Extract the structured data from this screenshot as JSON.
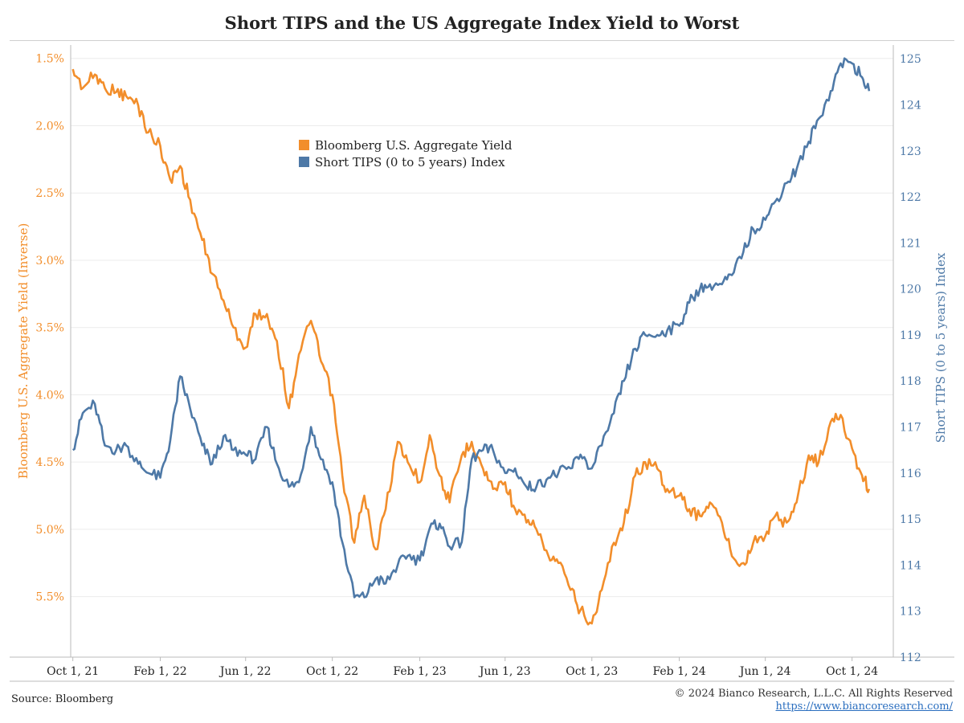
{
  "title": "Short TIPS and the US Aggregate Index Yield to Worst",
  "footer": {
    "source": "Source: Bloomberg",
    "copyright": "© 2024 Bianco Research, L.L.C. All Rights Reserved",
    "url": "https://www.biancoresearch.com/"
  },
  "colors": {
    "yield": "#f28e2b",
    "tips": "#4e79a7",
    "grid": "#ececec",
    "axis": "#bbbbbb"
  },
  "chart_data": {
    "type": "line",
    "title": "Short TIPS and the US Aggregate Index Yield to Worst",
    "x_ticks": [
      "Oct 1, 21",
      "Feb 1, 22",
      "Jun 1, 22",
      "Oct 1, 22",
      "Feb 1, 23",
      "Jun 1, 23",
      "Oct 1, 23",
      "Feb 1, 24",
      "Jun 1, 24",
      "Oct 1, 24"
    ],
    "left_axis": {
      "label": "Bloomberg U.S. Aggregate Yield (Inverse)",
      "inverted": true,
      "range": [
        1.4,
        5.95
      ],
      "ticks": [
        "1.5%",
        "2.0%",
        "2.5%",
        "3.0%",
        "3.5%",
        "4.0%",
        "4.5%",
        "5.0%",
        "5.5%"
      ]
    },
    "right_axis": {
      "label": "Short TIPS (0 to 5 years) Index",
      "range": [
        112,
        125.3
      ],
      "ticks": [
        "112",
        "113",
        "114",
        "115",
        "116",
        "117",
        "118",
        "119",
        "120",
        "121",
        "122",
        "123",
        "124",
        "125"
      ]
    },
    "legend_position": "upper-center",
    "series": [
      {
        "name": "Bloomberg U.S. Aggregate Yield",
        "axis": "left",
        "points": [
          [
            "2021-10-01",
            1.58
          ],
          [
            "2021-10-15",
            1.72
          ],
          [
            "2021-11-01",
            1.62
          ],
          [
            "2021-11-15",
            1.72
          ],
          [
            "2021-12-01",
            1.75
          ],
          [
            "2021-12-15",
            1.78
          ],
          [
            "2022-01-01",
            1.85
          ],
          [
            "2022-01-15",
            2.05
          ],
          [
            "2022-02-01",
            2.15
          ],
          [
            "2022-02-15",
            2.4
          ],
          [
            "2022-03-01",
            2.3
          ],
          [
            "2022-03-15",
            2.55
          ],
          [
            "2022-04-01",
            2.85
          ],
          [
            "2022-04-15",
            3.1
          ],
          [
            "2022-05-01",
            3.3
          ],
          [
            "2022-05-15",
            3.5
          ],
          [
            "2022-06-01",
            3.65
          ],
          [
            "2022-06-15",
            3.4
          ],
          [
            "2022-07-01",
            3.4
          ],
          [
            "2022-07-15",
            3.6
          ],
          [
            "2022-08-01",
            4.1
          ],
          [
            "2022-08-15",
            3.7
          ],
          [
            "2022-09-01",
            3.45
          ],
          [
            "2022-09-15",
            3.75
          ],
          [
            "2022-10-01",
            4.0
          ],
          [
            "2022-10-15",
            4.6
          ],
          [
            "2022-11-01",
            5.1
          ],
          [
            "2022-11-15",
            4.75
          ],
          [
            "2022-12-01",
            5.15
          ],
          [
            "2022-12-15",
            4.85
          ],
          [
            "2023-01-01",
            4.35
          ],
          [
            "2023-01-15",
            4.5
          ],
          [
            "2023-02-01",
            4.65
          ],
          [
            "2023-02-15",
            4.3
          ],
          [
            "2023-03-01",
            4.6
          ],
          [
            "2023-03-15",
            4.8
          ],
          [
            "2023-04-01",
            4.45
          ],
          [
            "2023-04-15",
            4.35
          ],
          [
            "2023-05-01",
            4.55
          ],
          [
            "2023-05-15",
            4.7
          ],
          [
            "2023-06-01",
            4.65
          ],
          [
            "2023-06-15",
            4.85
          ],
          [
            "2023-07-01",
            4.95
          ],
          [
            "2023-07-15",
            5.0
          ],
          [
            "2023-08-01",
            5.2
          ],
          [
            "2023-08-15",
            5.25
          ],
          [
            "2023-09-01",
            5.45
          ],
          [
            "2023-09-15",
            5.6
          ],
          [
            "2023-10-01",
            5.7
          ],
          [
            "2023-10-15",
            5.45
          ],
          [
            "2023-11-01",
            5.1
          ],
          [
            "2023-11-15",
            4.95
          ],
          [
            "2023-12-01",
            4.6
          ],
          [
            "2023-12-15",
            4.5
          ],
          [
            "2024-01-01",
            4.55
          ],
          [
            "2024-01-15",
            4.7
          ],
          [
            "2024-02-01",
            4.75
          ],
          [
            "2024-02-15",
            4.85
          ],
          [
            "2024-03-01",
            4.9
          ],
          [
            "2024-03-15",
            4.8
          ],
          [
            "2024-04-01",
            4.95
          ],
          [
            "2024-04-15",
            5.2
          ],
          [
            "2024-05-01",
            5.25
          ],
          [
            "2024-05-15",
            5.1
          ],
          [
            "2024-06-01",
            5.05
          ],
          [
            "2024-06-15",
            4.9
          ],
          [
            "2024-07-01",
            4.95
          ],
          [
            "2024-07-15",
            4.8
          ],
          [
            "2024-08-01",
            4.45
          ],
          [
            "2024-08-15",
            4.5
          ],
          [
            "2024-09-01",
            4.2
          ],
          [
            "2024-09-15",
            4.15
          ],
          [
            "2024-10-01",
            4.4
          ],
          [
            "2024-10-15",
            4.6
          ],
          [
            "2024-10-25",
            4.7
          ]
        ]
      },
      {
        "name": "Short TIPS (0 to 5 years) Index",
        "axis": "right",
        "points": [
          [
            "2021-10-01",
            116.5
          ],
          [
            "2021-10-15",
            117.3
          ],
          [
            "2021-11-01",
            117.5
          ],
          [
            "2021-11-15",
            116.6
          ],
          [
            "2021-12-01",
            116.5
          ],
          [
            "2021-12-15",
            116.6
          ],
          [
            "2022-01-01",
            116.2
          ],
          [
            "2022-01-15",
            116.0
          ],
          [
            "2022-02-01",
            115.9
          ],
          [
            "2022-02-15",
            116.7
          ],
          [
            "2022-03-01",
            118.1
          ],
          [
            "2022-03-15",
            117.4
          ],
          [
            "2022-04-01",
            116.6
          ],
          [
            "2022-04-15",
            116.2
          ],
          [
            "2022-05-01",
            116.8
          ],
          [
            "2022-05-15",
            116.5
          ],
          [
            "2022-06-01",
            116.4
          ],
          [
            "2022-06-15",
            116.3
          ],
          [
            "2022-07-01",
            117.0
          ],
          [
            "2022-07-15",
            116.2
          ],
          [
            "2022-08-01",
            115.7
          ],
          [
            "2022-08-15",
            115.8
          ],
          [
            "2022-09-01",
            117.0
          ],
          [
            "2022-09-15",
            116.3
          ],
          [
            "2022-10-01",
            115.8
          ],
          [
            "2022-10-15",
            114.5
          ],
          [
            "2022-11-01",
            113.3
          ],
          [
            "2022-11-15",
            113.3
          ],
          [
            "2022-12-01",
            113.7
          ],
          [
            "2022-12-15",
            113.6
          ],
          [
            "2023-01-01",
            114.0
          ],
          [
            "2023-01-15",
            114.2
          ],
          [
            "2023-02-01",
            114.1
          ],
          [
            "2023-02-15",
            114.8
          ],
          [
            "2023-03-01",
            114.9
          ],
          [
            "2023-03-15",
            114.4
          ],
          [
            "2023-04-01",
            114.5
          ],
          [
            "2023-04-15",
            116.3
          ],
          [
            "2023-05-01",
            116.5
          ],
          [
            "2023-05-15",
            116.5
          ],
          [
            "2023-06-01",
            116.0
          ],
          [
            "2023-06-15",
            116.1
          ],
          [
            "2023-07-01",
            115.7
          ],
          [
            "2023-07-15",
            115.7
          ],
          [
            "2023-08-01",
            115.9
          ],
          [
            "2023-08-15",
            116.0
          ],
          [
            "2023-09-01",
            116.1
          ],
          [
            "2023-09-15",
            116.4
          ],
          [
            "2023-10-01",
            116.1
          ],
          [
            "2023-10-15",
            116.6
          ],
          [
            "2023-11-01",
            117.3
          ],
          [
            "2023-11-15",
            118.0
          ],
          [
            "2023-12-01",
            118.7
          ],
          [
            "2023-12-15",
            119.0
          ],
          [
            "2024-01-01",
            119.0
          ],
          [
            "2024-01-15",
            119.1
          ],
          [
            "2024-02-01",
            119.2
          ],
          [
            "2024-02-15",
            119.7
          ],
          [
            "2024-03-01",
            120.0
          ],
          [
            "2024-03-15",
            120.1
          ],
          [
            "2024-04-01",
            120.1
          ],
          [
            "2024-04-15",
            120.3
          ],
          [
            "2024-05-01",
            120.8
          ],
          [
            "2024-05-15",
            121.3
          ],
          [
            "2024-06-01",
            121.5
          ],
          [
            "2024-06-15",
            121.9
          ],
          [
            "2024-07-01",
            122.3
          ],
          [
            "2024-07-15",
            122.6
          ],
          [
            "2024-08-01",
            123.2
          ],
          [
            "2024-08-15",
            123.7
          ],
          [
            "2024-09-01",
            124.3
          ],
          [
            "2024-09-15",
            124.9
          ],
          [
            "2024-10-01",
            124.9
          ],
          [
            "2024-10-15",
            124.6
          ],
          [
            "2024-10-25",
            124.3
          ]
        ]
      }
    ]
  }
}
